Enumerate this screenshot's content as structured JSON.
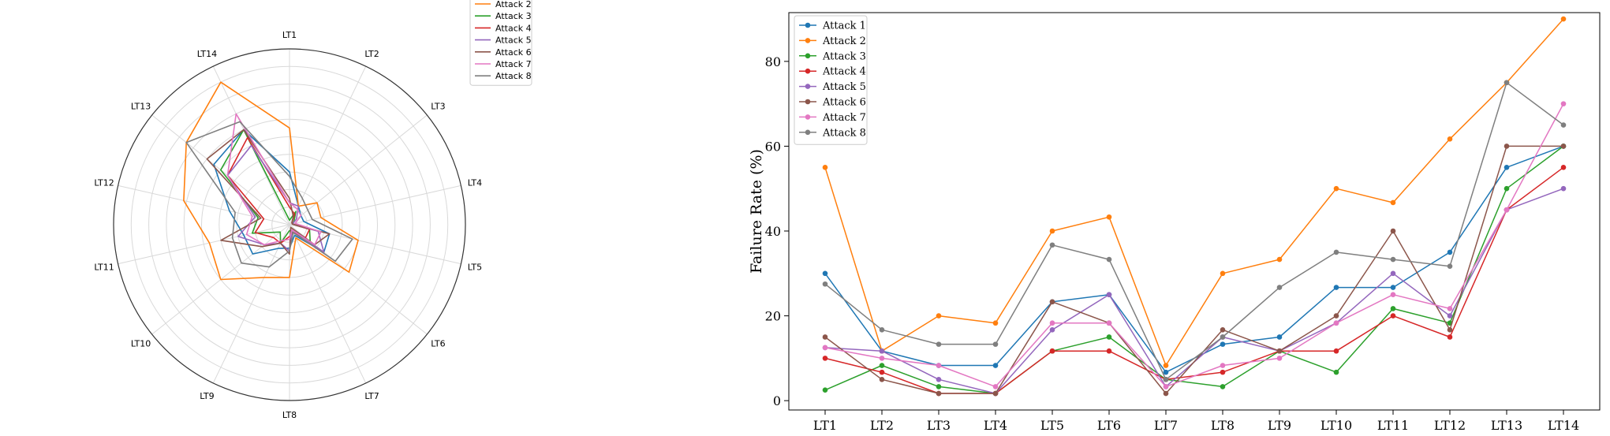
{
  "colors": {
    "Attack 1": "#1f77b4",
    "Attack 2": "#ff7f0e",
    "Attack 3": "#2ca02c",
    "Attack 4": "#d62728",
    "Attack 5": "#9467bd",
    "Attack 6": "#8c564b",
    "Attack 7": "#e377c2",
    "Attack 8": "#7f7f7f"
  },
  "chart_data": [
    {
      "type": "radar",
      "categories": [
        "LT1",
        "LT2",
        "LT3",
        "LT4",
        "LT5",
        "LT6",
        "LT7",
        "LT8",
        "LT9",
        "LT10",
        "LT11",
        "LT12",
        "LT13",
        "LT14"
      ],
      "rlim": [
        0,
        100
      ],
      "grid": true,
      "legend_placement": "top-right",
      "legend_visible": [
        "Attack 2",
        "Attack 3",
        "Attack 4",
        "Attack 5",
        "Attack 6",
        "Attack 7",
        "Attack 8"
      ],
      "series": [
        {
          "name": "Attack 1",
          "values": [
            30.0,
            11.7,
            8.3,
            8.3,
            23.3,
            25.0,
            6.7,
            13.3,
            15.0,
            26.7,
            26.7,
            35.0,
            55.0,
            60.0
          ]
        },
        {
          "name": "Attack 2",
          "values": [
            55.0,
            11.7,
            20.0,
            18.3,
            40.0,
            43.3,
            8.3,
            30.0,
            33.3,
            50.0,
            46.7,
            61.7,
            75.0,
            90.0
          ]
        },
        {
          "name": "Attack 3",
          "values": [
            2.5,
            8.3,
            3.3,
            1.7,
            11.7,
            15.0,
            5.0,
            3.3,
            11.7,
            6.7,
            21.7,
            18.3,
            50.0,
            60.0
          ]
        },
        {
          "name": "Attack 4",
          "values": [
            10.0,
            6.7,
            1.7,
            1.7,
            11.7,
            11.7,
            5.0,
            6.7,
            11.7,
            11.7,
            20.0,
            15.0,
            45.0,
            55.0
          ]
        },
        {
          "name": "Attack 5",
          "values": [
            12.5,
            11.7,
            5.0,
            1.7,
            16.7,
            25.0,
            3.3,
            15.0,
            11.7,
            18.3,
            30.0,
            20.0,
            45.0,
            50.0
          ]
        },
        {
          "name": "Attack 6",
          "values": [
            15.0,
            5.0,
            1.7,
            1.7,
            23.3,
            18.3,
            1.7,
            16.7,
            11.7,
            20.0,
            40.0,
            16.7,
            60.0,
            60.0
          ]
        },
        {
          "name": "Attack 7",
          "values": [
            12.5,
            10.0,
            8.3,
            3.3,
            18.3,
            18.3,
            3.3,
            8.3,
            10.0,
            18.3,
            25.0,
            21.7,
            45.0,
            70.0
          ]
        },
        {
          "name": "Attack 8",
          "values": [
            27.5,
            16.7,
            13.3,
            13.3,
            36.7,
            33.3,
            5.0,
            15.0,
            26.7,
            35.0,
            33.3,
            31.7,
            75.0,
            65.0
          ]
        }
      ]
    },
    {
      "type": "line",
      "x": [
        "LT1",
        "LT2",
        "LT3",
        "LT4",
        "LT5",
        "LT6",
        "LT7",
        "LT8",
        "LT9",
        "LT10",
        "LT11",
        "LT12",
        "LT13",
        "LT14"
      ],
      "ylabel": "Failure Rate (%)",
      "xlabel": "",
      "ylim": [
        -2.2,
        91.5
      ],
      "yticks": [
        0,
        20,
        40,
        60,
        80
      ],
      "grid": false,
      "legend_placement": "top-left",
      "series": [
        {
          "name": "Attack 1",
          "values": [
            30.0,
            11.7,
            8.3,
            8.3,
            23.3,
            25.0,
            6.7,
            13.3,
            15.0,
            26.7,
            26.7,
            35.0,
            55.0,
            60.0
          ]
        },
        {
          "name": "Attack 2",
          "values": [
            55.0,
            11.7,
            20.0,
            18.3,
            40.0,
            43.3,
            8.3,
            30.0,
            33.3,
            50.0,
            46.7,
            61.7,
            75.0,
            90.0
          ]
        },
        {
          "name": "Attack 3",
          "values": [
            2.5,
            8.3,
            3.3,
            1.7,
            11.7,
            15.0,
            5.0,
            3.3,
            11.7,
            6.7,
            21.7,
            18.3,
            50.0,
            60.0
          ]
        },
        {
          "name": "Attack 4",
          "values": [
            10.0,
            6.7,
            1.7,
            1.7,
            11.7,
            11.7,
            5.0,
            6.7,
            11.7,
            11.7,
            20.0,
            15.0,
            45.0,
            55.0
          ]
        },
        {
          "name": "Attack 5",
          "values": [
            12.5,
            11.7,
            5.0,
            1.7,
            16.7,
            25.0,
            3.3,
            15.0,
            11.7,
            18.3,
            30.0,
            20.0,
            45.0,
            50.0
          ]
        },
        {
          "name": "Attack 6",
          "values": [
            15.0,
            5.0,
            1.7,
            1.7,
            23.3,
            18.3,
            1.7,
            16.7,
            11.7,
            20.0,
            40.0,
            16.7,
            60.0,
            60.0
          ]
        },
        {
          "name": "Attack 7",
          "values": [
            12.5,
            10.0,
            8.3,
            3.3,
            18.3,
            18.3,
            3.3,
            8.3,
            10.0,
            18.3,
            25.0,
            21.7,
            45.0,
            70.0
          ]
        },
        {
          "name": "Attack 8",
          "values": [
            27.5,
            16.7,
            13.3,
            13.3,
            36.7,
            33.3,
            5.0,
            15.0,
            26.7,
            35.0,
            33.3,
            31.7,
            75.0,
            65.0
          ]
        }
      ]
    }
  ]
}
